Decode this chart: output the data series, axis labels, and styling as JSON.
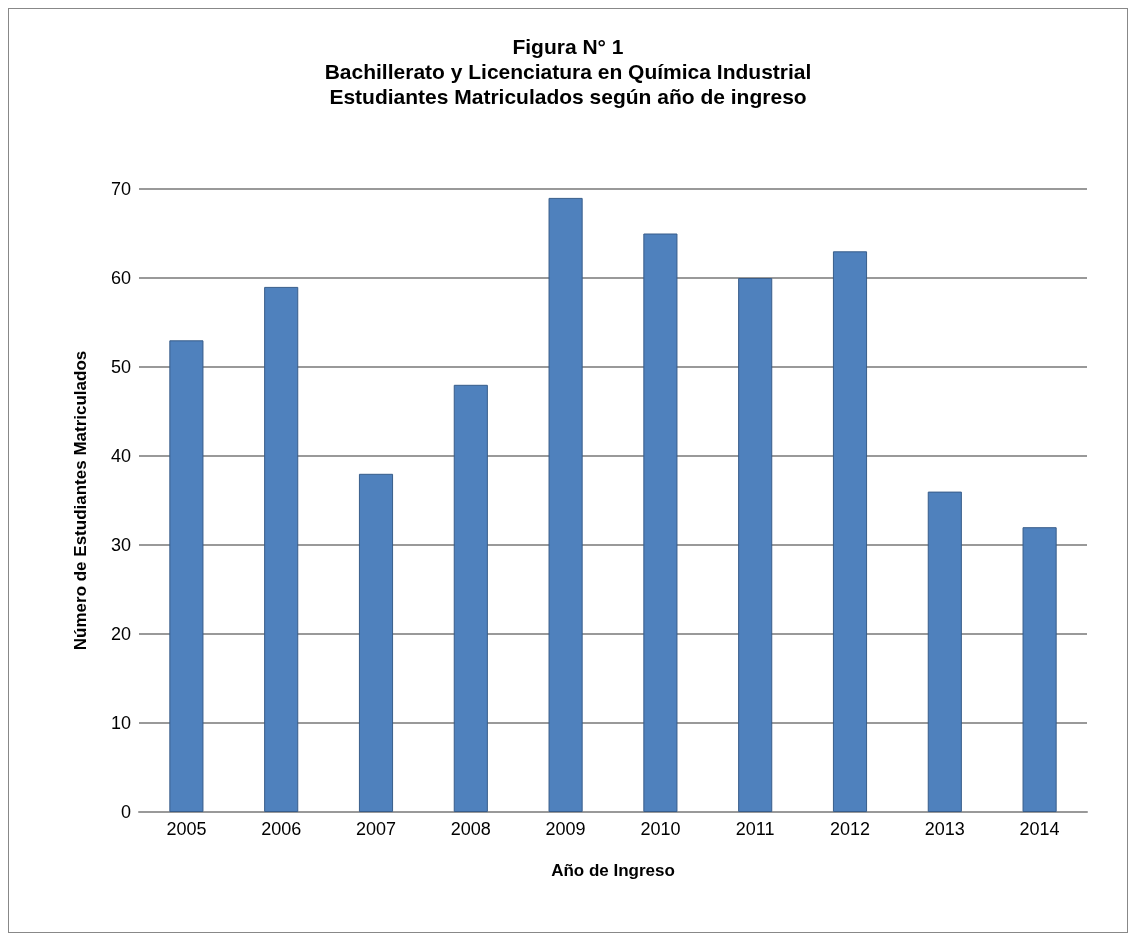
{
  "chart_data": {
    "type": "bar",
    "title": "Figura N° 1\nBachillerato y Licenciatura en Química Industrial\nEstudiantes Matriculados según año de ingreso",
    "xlabel": "Año de Ingreso",
    "ylabel": "Número de Estudiantes Matriculados",
    "categories": [
      "2005",
      "2006",
      "2007",
      "2008",
      "2009",
      "2010",
      "2011",
      "2012",
      "2013",
      "2014"
    ],
    "values": [
      53,
      59,
      38,
      48,
      69,
      65,
      60,
      63,
      36,
      32
    ],
    "color": "#4f81bd",
    "ylim": [
      0,
      70
    ],
    "yticks": [
      0,
      10,
      20,
      30,
      40,
      50,
      60,
      70
    ],
    "grid": "y"
  }
}
